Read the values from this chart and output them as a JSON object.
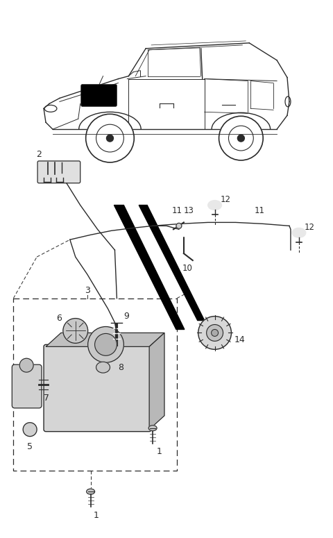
{
  "bg_color": "#ffffff",
  "line_color": "#2a2a2a",
  "fig_width": 4.8,
  "fig_height": 7.75,
  "dpi": 100
}
